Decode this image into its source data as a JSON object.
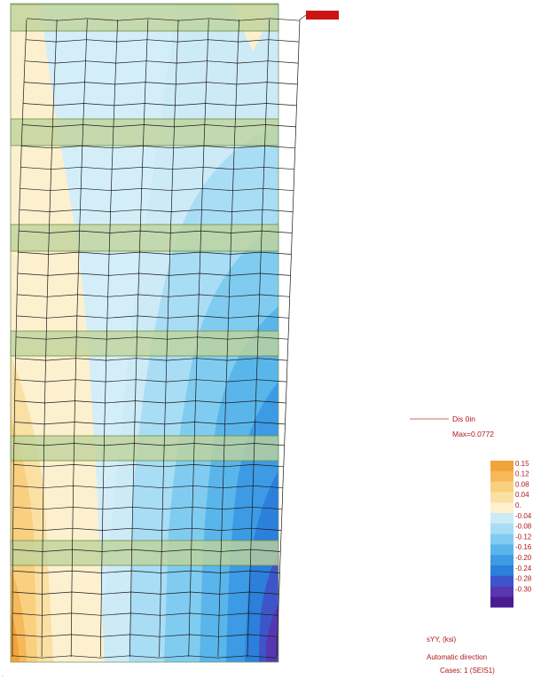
{
  "marker": {
    "label": "",
    "color": "#cc1414"
  },
  "displacement": {
    "label": "Dis  0in",
    "max": "Max=0.0772",
    "line_color": "#c0392b"
  },
  "legend": {
    "values": [
      "0.15",
      "0.12",
      "0.08",
      "0.04",
      "0.",
      "-0.04",
      "-0.08",
      "-0.12",
      "-0.16",
      "-0.20",
      "-0.24",
      "-0.28",
      "-0.30"
    ],
    "colors": [
      "#f2a33a",
      "#f6b858",
      "#f9cf80",
      "#fbe0a4",
      "#fdf0cf",
      "#cdeaf7",
      "#a8ddf5",
      "#80ccf1",
      "#5ab6ea",
      "#3c9be4",
      "#2c7fdb",
      "#3d55c9",
      "#5637b0",
      "#4a1c92"
    ],
    "quantity": "sYY, (ksi)",
    "direction": "Automatic direction",
    "cases": "Cases: 1 (SEIS1)"
  },
  "colors": {
    "slab_fill": "#bfd39b",
    "slab_stroke": "#6f8f3d",
    "mesh": "#1a1a1a",
    "text": "#b01818"
  }
}
